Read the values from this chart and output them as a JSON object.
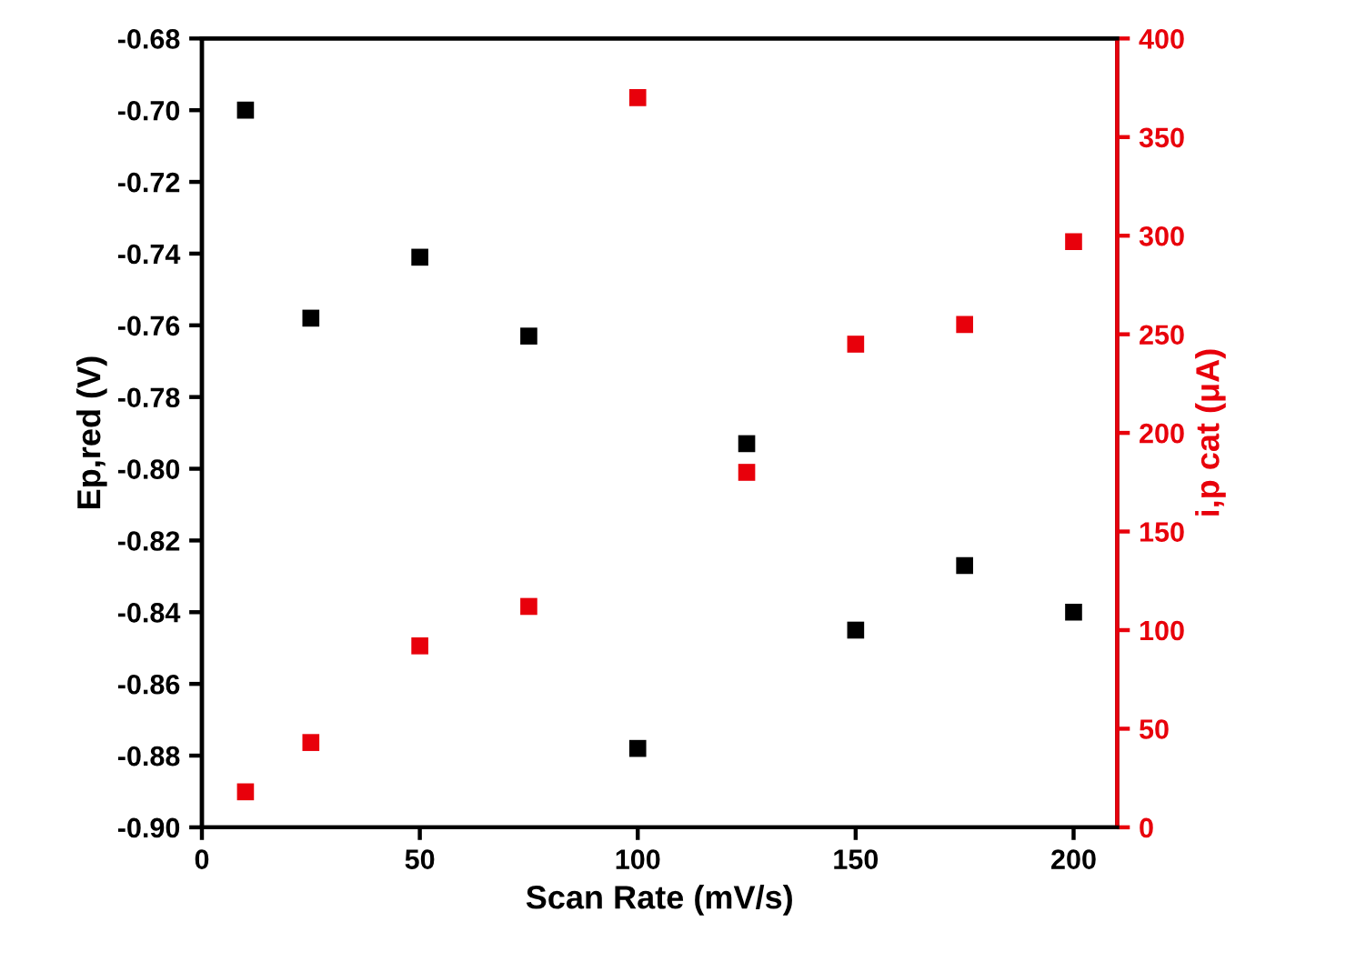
{
  "chart_data": {
    "type": "scatter",
    "xlabel": "Scan Rate (mV/s)",
    "ylabel": "Ep,red (V)",
    "y2label": "i,p cat (μA)",
    "marker": "square",
    "grid": false,
    "legend": false,
    "x": [
      10,
      25,
      50,
      75,
      100,
      125,
      150,
      175,
      200
    ],
    "series": [
      {
        "color": "#000000",
        "values": [
          -0.7,
          -0.758,
          -0.741,
          -0.763,
          -0.878,
          -0.793,
          -0.845,
          -0.827,
          -0.84
        ]
      },
      {
        "color": "#e8000b",
        "axis": "y2",
        "values": [
          18,
          43,
          92,
          112,
          370,
          180,
          245,
          255,
          297
        ]
      }
    ],
    "xlim": [
      0,
      210
    ],
    "xticks": [
      0,
      50,
      100,
      150,
      200
    ],
    "ylim": [
      -0.9,
      -0.68
    ],
    "yticks": [
      {
        "value": -0.9,
        "label": "-0.90"
      },
      -0.88,
      -0.86,
      -0.84,
      -0.82,
      {
        "value": -0.8,
        "label": "-0.80"
      },
      -0.78,
      -0.76,
      -0.74,
      -0.72,
      {
        "value": -0.7,
        "label": "-0.70"
      },
      -0.68
    ],
    "y2lim": [
      0,
      400
    ],
    "y2ticks": [
      0,
      50,
      100,
      150,
      200,
      250,
      300,
      350,
      400
    ]
  }
}
